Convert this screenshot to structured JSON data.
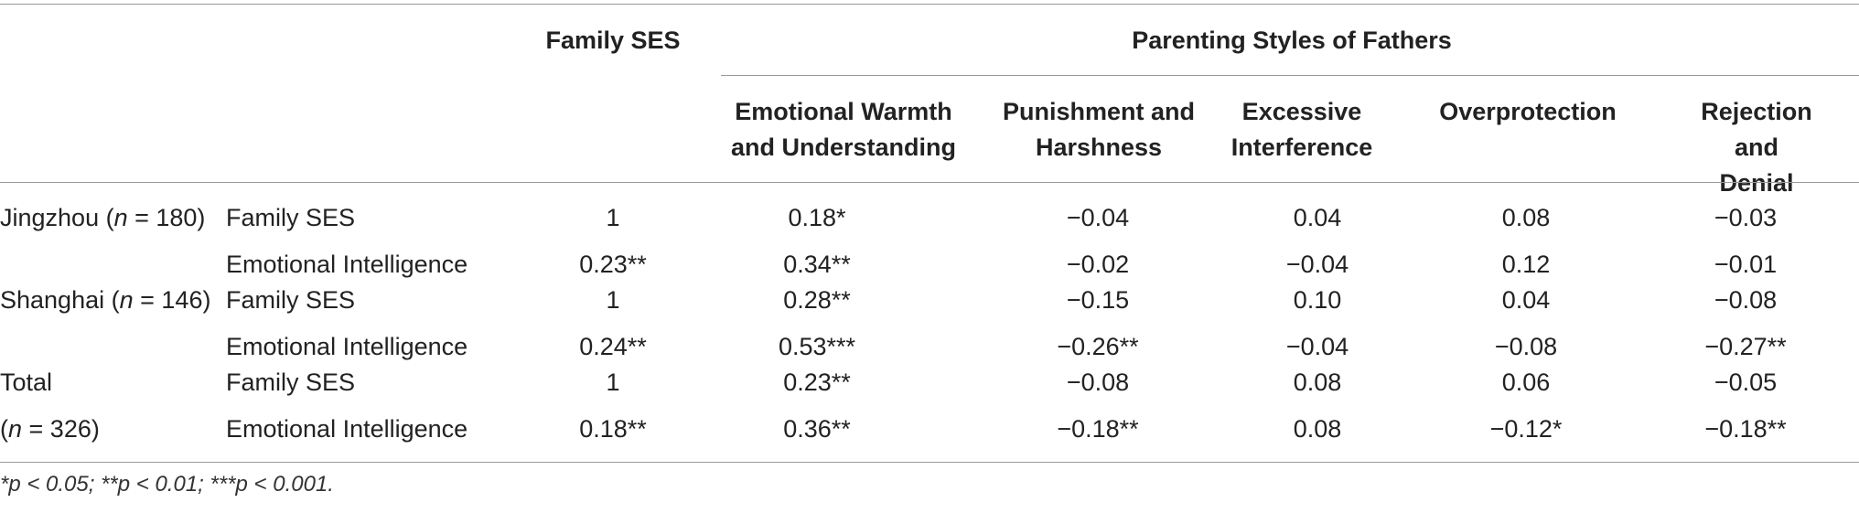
{
  "header": {
    "family_ses": "Family SES",
    "parenting_styles": "Parenting Styles of Fathers",
    "subcolumns": [
      [
        "Emotional Warmth",
        "and Understanding"
      ],
      [
        "Punishment and",
        "Harshness"
      ],
      [
        "Excessive",
        "Interference"
      ],
      [
        "Overprotection",
        ""
      ],
      [
        "Rejection and",
        "Denial"
      ]
    ]
  },
  "rows": [
    {
      "group": "Jingzhou (",
      "n": "n",
      "group_tail": " = 180)",
      "label": "Family SES",
      "ses": "1",
      "vals": [
        "0.18*",
        "−0.04",
        "0.04",
        "0.08",
        "−0.03"
      ]
    },
    {
      "group": "",
      "n": "",
      "group_tail": "",
      "label": "Emotional Intelligence",
      "ses": "0.23**",
      "vals": [
        "0.34**",
        "−0.02",
        "−0.04",
        "0.12",
        "−0.01"
      ]
    },
    {
      "group": "Shanghai (",
      "n": "n",
      "group_tail": " = 146)",
      "label": "Family SES",
      "ses": "1",
      "vals": [
        "0.28**",
        "−0.15",
        "0.10",
        "0.04",
        "−0.08"
      ]
    },
    {
      "group": "",
      "n": "",
      "group_tail": "",
      "label": "Emotional Intelligence",
      "ses": "0.24**",
      "vals": [
        "0.53***",
        "−0.26**",
        "−0.04",
        "−0.08",
        "−0.27**"
      ]
    },
    {
      "group": "Total",
      "n": "",
      "group_tail": "",
      "label": "Family SES",
      "ses": "1",
      "vals": [
        "0.23**",
        "−0.08",
        "0.08",
        "0.06",
        "−0.05"
      ]
    },
    {
      "group": "(",
      "n": "n",
      "group_tail": " = 326)",
      "label": "Emotional Intelligence",
      "ses": "0.18**",
      "vals": [
        "0.36**",
        "−0.18**",
        "0.08",
        "−0.12*",
        "−0.18**"
      ]
    }
  ],
  "footnote": "*p < 0.05; **p < 0.01;  ***p < 0.001."
}
